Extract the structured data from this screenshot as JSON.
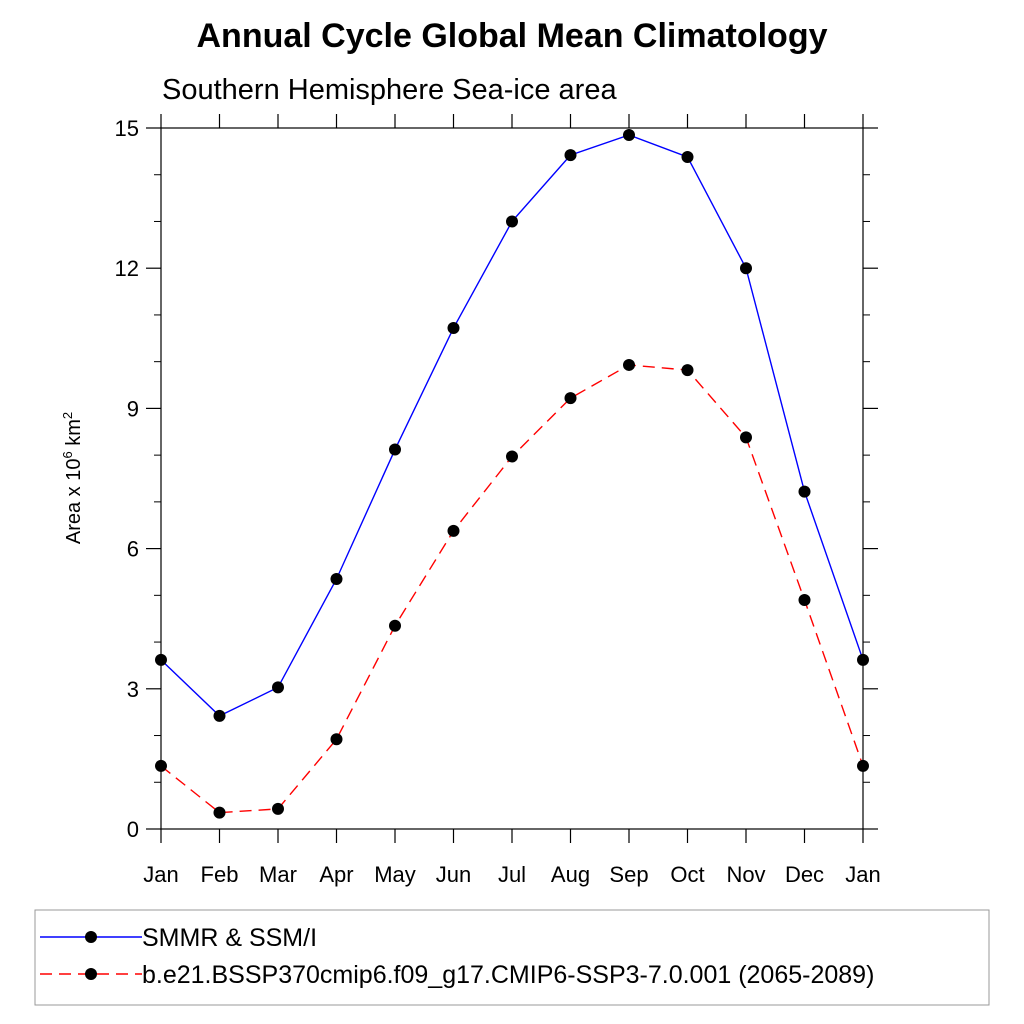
{
  "chart_data": {
    "type": "line",
    "title": "Annual Cycle Global Mean Climatology",
    "subtitle": "Southern Hemisphere Sea-ice area",
    "ylabel": {
      "main": "Area x 10",
      "sup": "6",
      "unit": " km",
      "unit_sup": "2"
    },
    "categories": [
      "Jan",
      "Feb",
      "Mar",
      "Apr",
      "May",
      "Jun",
      "Jul",
      "Aug",
      "Sep",
      "Oct",
      "Nov",
      "Dec",
      "Jan"
    ],
    "ylim": [
      0,
      15
    ],
    "yticks": [
      0,
      3,
      6,
      9,
      12,
      15
    ],
    "series": [
      {
        "name": "SMMR & SSM/I",
        "color": "#0000ff",
        "dash": "solid",
        "values": [
          3.62,
          2.42,
          3.03,
          5.35,
          8.12,
          10.72,
          13.0,
          14.42,
          14.85,
          14.38,
          12.0,
          7.22,
          3.62
        ]
      },
      {
        "name": "b.e21.BSSP370cmip6.f09_g17.CMIP6-SSP3-7.0.001 (2065-2089)",
        "color": "#ff0000",
        "dash": "dashed",
        "values": [
          1.35,
          0.35,
          0.43,
          1.92,
          4.35,
          6.38,
          7.97,
          9.22,
          9.93,
          9.82,
          8.38,
          4.9,
          1.35
        ]
      }
    ],
    "legend_position": "bottom",
    "grid": false
  }
}
